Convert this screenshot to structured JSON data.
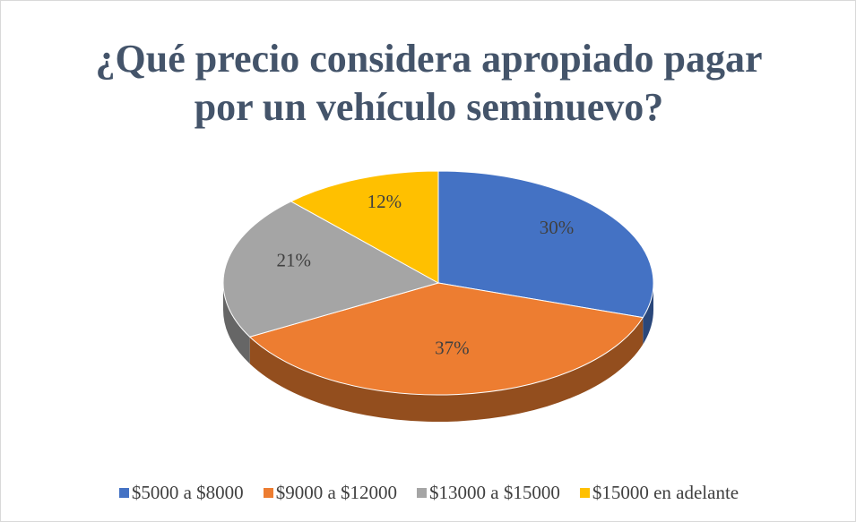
{
  "chart_data": {
    "type": "pie",
    "title": "¿Qué precio considera apropiado pagar por un vehículo seminuevo?",
    "categories": [
      "$5000 a $8000",
      "$9000 a $12000",
      "$13000 a $15000",
      "$15000 en adelante"
    ],
    "values": [
      30,
      37,
      21,
      12
    ],
    "value_labels": [
      "30%",
      "37%",
      "21%",
      "12%"
    ],
    "colors": [
      "#4472c4",
      "#ed7d31",
      "#a5a5a5",
      "#ffc000"
    ],
    "legend": "bottom"
  }
}
